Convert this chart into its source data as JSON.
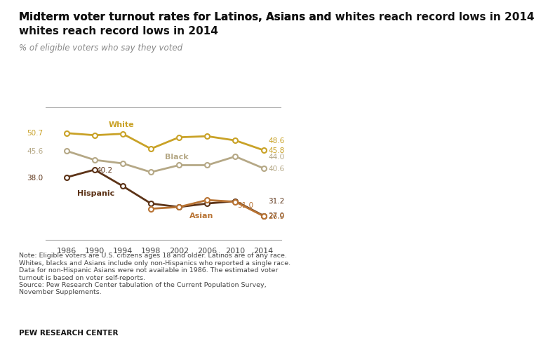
{
  "title": "Midterm voter turnout rates for Latinos, Asians and whites reach record lows in 2014",
  "subtitle": "% of eligible voters who say they voted",
  "years": [
    1986,
    1990,
    1994,
    1998,
    2002,
    2006,
    2010,
    2014
  ],
  "white": [
    50.7,
    50.1,
    50.5,
    46.2,
    49.5,
    49.8,
    48.6,
    45.8
  ],
  "black": [
    45.6,
    43.0,
    42.0,
    39.5,
    41.5,
    41.5,
    44.0,
    40.6
  ],
  "hispanic": [
    38.0,
    40.2,
    35.5,
    30.5,
    29.5,
    30.5,
    31.2,
    27.0
  ],
  "asian": [
    null,
    null,
    null,
    29.0,
    29.5,
    31.5,
    31.0,
    26.9
  ],
  "white_color": "#C9A227",
  "black_color": "#B5A886",
  "hispanic_color": "#5C3317",
  "asian_color": "#B87333",
  "note_text": "Note: Eligible voters are U.S. citizens ages 18 and older. Latinos are of any race.\nWhites, blacks and Asians include only non-Hispanics who reported a single race.\nData for non-Hispanic Asians were not available in 1986. The estimated voter\nturnout is based on voter self-reports.\nSource: Pew Research Center tabulation of the Current Population Survey,\nNovember Supplements.",
  "source_label": "PEW RESEARCH CENTER",
  "bg_color": "#FFFFFF",
  "ylim": [
    20,
    58
  ],
  "line_color_top": "#DDDDDD"
}
